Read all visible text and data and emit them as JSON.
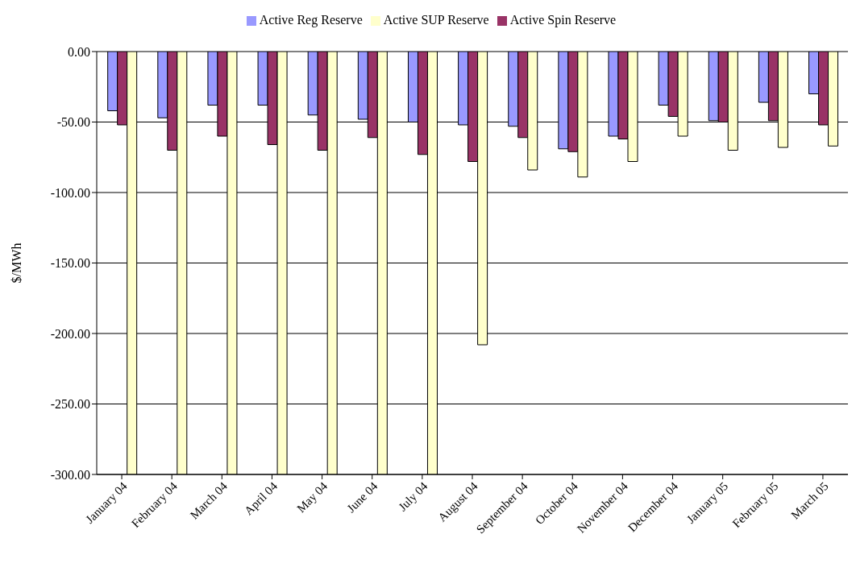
{
  "chart_data": {
    "type": "bar",
    "ylabel": "$/MWh",
    "categories": [
      "January 04",
      "February 04",
      "March  04",
      "April 04",
      "May 04",
      "June 04",
      "July 04",
      "August 04",
      "September 04",
      "October 04",
      "November 04",
      "December 04",
      "January 05",
      "February 05",
      "March 05"
    ],
    "series": [
      {
        "name": "Active Reg Reserve",
        "color": "#9999ff",
        "values": [
          -42,
          -47,
          -38,
          -38,
          -45,
          -48,
          -50,
          -52,
          -53,
          -69,
          -60,
          -38,
          -49,
          -36,
          -30
        ]
      },
      {
        "name": "Active Spin Reserve",
        "color": "#993366",
        "values": [
          -52,
          -70,
          -60,
          -66,
          -70,
          -61,
          -73,
          -78,
          -61,
          -71,
          -62,
          -46,
          -50,
          -49,
          -52
        ]
      },
      {
        "name": "Active SUP Reserve",
        "color": "#ffffcc",
        "values": [
          -300,
          -300,
          -300,
          -300,
          -300,
          -300,
          -300,
          -208,
          -84,
          -89,
          -78,
          -60,
          -70,
          -68,
          -67
        ]
      }
    ],
    "ylim": [
      -300,
      0
    ],
    "yticks": [
      {
        "value": -300,
        "label": "-300.00"
      },
      {
        "value": -250,
        "label": "-250.00"
      },
      {
        "value": -200,
        "label": "-200.00"
      },
      {
        "value": -150,
        "label": "-150.00"
      },
      {
        "value": -100,
        "label": "-100.00"
      },
      {
        "value": -50,
        "label": "-50.00"
      },
      {
        "value": 0,
        "label": "0.00"
      }
    ],
    "grid": "y",
    "legend": "top"
  }
}
